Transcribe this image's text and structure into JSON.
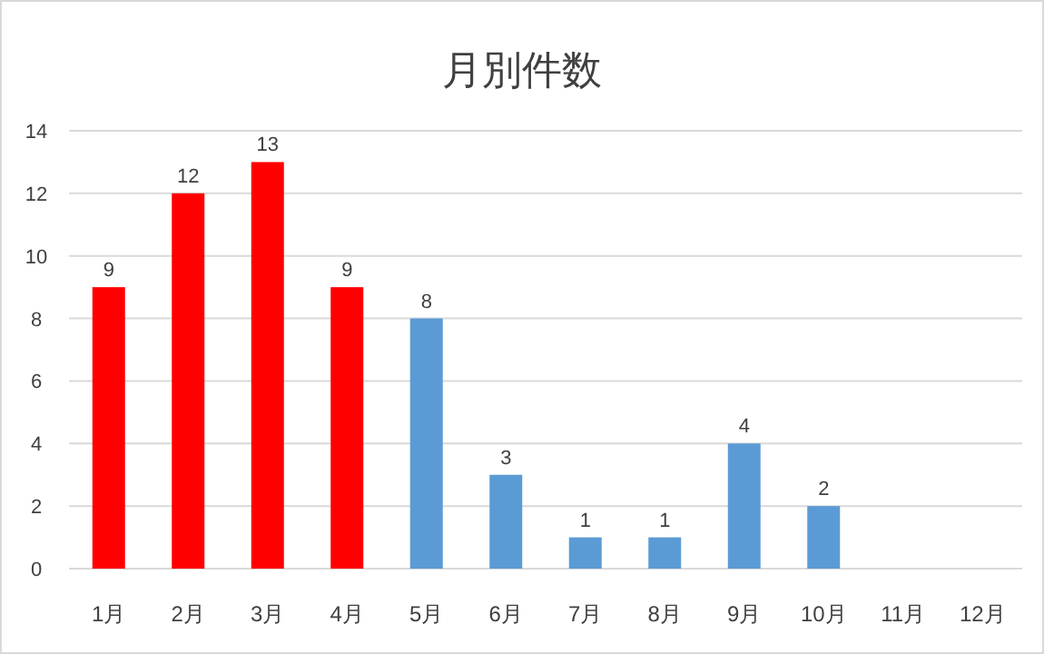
{
  "chart_data": {
    "type": "bar",
    "title": "月別件数",
    "categories": [
      "1月",
      "2月",
      "3月",
      "4月",
      "5月",
      "6月",
      "7月",
      "8月",
      "9月",
      "10月",
      "11月",
      "12月"
    ],
    "values": [
      9,
      12,
      13,
      9,
      8,
      3,
      1,
      1,
      4,
      2,
      null,
      null
    ],
    "colors": [
      "#ff0000",
      "#ff0000",
      "#ff0000",
      "#ff0000",
      "#5b9bd5",
      "#5b9bd5",
      "#5b9bd5",
      "#5b9bd5",
      "#5b9bd5",
      "#5b9bd5",
      null,
      null
    ],
    "ylim": [
      0,
      14
    ],
    "yticks": [
      0,
      2,
      4,
      6,
      8,
      10,
      12,
      14
    ],
    "grid": "y",
    "data_labels": true
  }
}
